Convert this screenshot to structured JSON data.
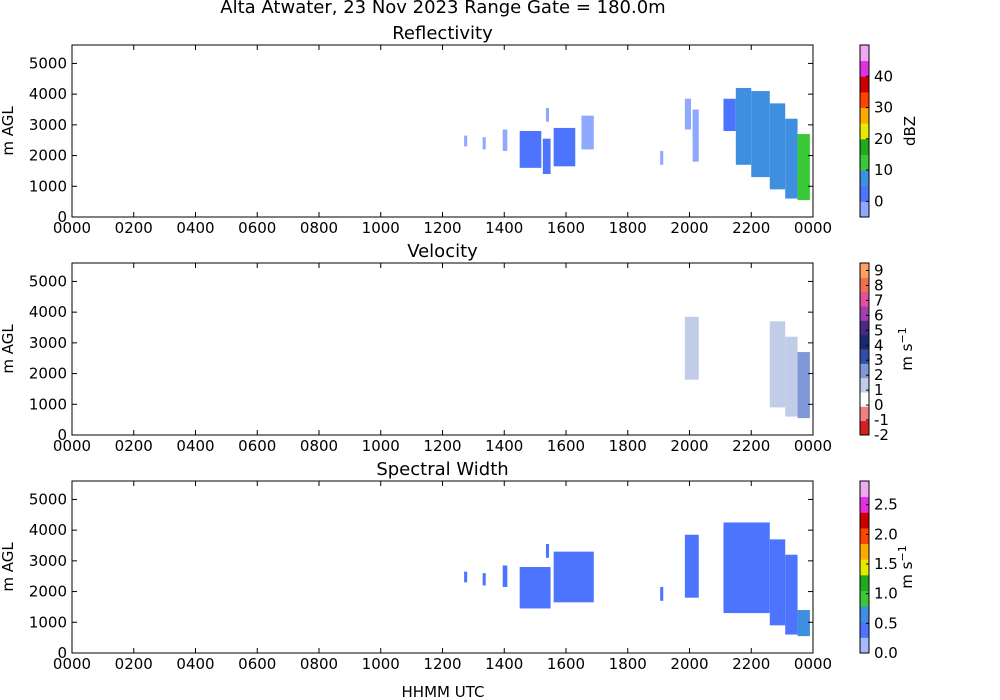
{
  "figure": {
    "suptitle": "Alta Atwater, 23 Nov 2023 Range Gate = 180.0m",
    "xlabel": "HHMM UTC"
  },
  "chart_data": [
    {
      "type": "heatmap",
      "title": "Reflectivity",
      "ylabel": "m AGL",
      "xlim": [
        0,
        24
      ],
      "ylim": [
        0,
        5600
      ],
      "xticks": [
        0,
        2,
        4,
        6,
        8,
        10,
        12,
        14,
        16,
        18,
        20,
        22,
        24
      ],
      "xticklabels": [
        "0000",
        "0200",
        "0400",
        "0600",
        "0800",
        "1000",
        "1200",
        "1400",
        "1600",
        "1800",
        "2000",
        "2200",
        "0000"
      ],
      "yticks": [
        0,
        1000,
        2000,
        3000,
        4000,
        5000
      ],
      "yticklabels": [
        "0",
        "1000",
        "2000",
        "3000",
        "4000",
        "5000"
      ],
      "colorbar": {
        "label": "dBZ",
        "range": [
          -5,
          50
        ],
        "ticks": [
          0,
          10,
          20,
          30,
          40
        ],
        "ticklabels": [
          "0",
          "10",
          "20",
          "30",
          "40"
        ],
        "colors": [
          "#8fa9ff",
          "#4d74ff",
          "#3f8fe0",
          "#38c838",
          "#1faa1f",
          "#e8e800",
          "#ffaa00",
          "#ff4400",
          "#cc0000",
          "#e030e0",
          "#f0a8f0"
        ]
      },
      "echoes": [
        {
          "t_start": 12.7,
          "t_end": 12.8,
          "z_bottom": 2300,
          "z_top": 2650,
          "value": -1
        },
        {
          "t_start": 13.3,
          "t_end": 13.4,
          "z_bottom": 2200,
          "z_top": 2600,
          "value": -1
        },
        {
          "t_start": 13.95,
          "t_end": 14.1,
          "z_bottom": 2150,
          "z_top": 2850,
          "value": -1
        },
        {
          "t_start": 14.5,
          "t_end": 15.2,
          "z_bottom": 1600,
          "z_top": 2800,
          "value": 1
        },
        {
          "t_start": 15.25,
          "t_end": 15.5,
          "z_bottom": 1400,
          "z_top": 2550,
          "value": 4
        },
        {
          "t_start": 15.35,
          "t_end": 15.45,
          "z_bottom": 3100,
          "z_top": 3550,
          "value": -1
        },
        {
          "t_start": 15.6,
          "t_end": 16.3,
          "z_bottom": 1650,
          "z_top": 2900,
          "value": 2
        },
        {
          "t_start": 16.5,
          "t_end": 16.9,
          "z_bottom": 2200,
          "z_top": 3300,
          "value": -1
        },
        {
          "t_start": 19.05,
          "t_end": 19.15,
          "z_bottom": 1700,
          "z_top": 2150,
          "value": -1
        },
        {
          "t_start": 19.85,
          "t_end": 20.05,
          "z_bottom": 2850,
          "z_top": 3850,
          "value": -1
        },
        {
          "t_start": 20.1,
          "t_end": 20.3,
          "z_bottom": 1800,
          "z_top": 3500,
          "value": -1
        },
        {
          "t_start": 21.1,
          "t_end": 21.5,
          "z_bottom": 2800,
          "z_top": 3850,
          "value": 0
        },
        {
          "t_start": 21.5,
          "t_end": 22.0,
          "z_bottom": 1700,
          "z_top": 4200,
          "value": 5
        },
        {
          "t_start": 22.0,
          "t_end": 22.6,
          "z_bottom": 1300,
          "z_top": 4100,
          "value": 6
        },
        {
          "t_start": 22.6,
          "t_end": 23.1,
          "z_bottom": 900,
          "z_top": 3700,
          "value": 8
        },
        {
          "t_start": 23.1,
          "t_end": 23.5,
          "z_bottom": 600,
          "z_top": 3200,
          "value": 9
        },
        {
          "t_start": 23.5,
          "t_end": 23.9,
          "z_bottom": 550,
          "z_top": 2700,
          "value": 12
        }
      ]
    },
    {
      "type": "heatmap",
      "title": "Velocity",
      "ylabel": "m s^-1 units",
      "ylabel_text": "m AGL",
      "xlim": [
        0,
        24
      ],
      "ylim": [
        0,
        5600
      ],
      "xticks": [
        0,
        2,
        4,
        6,
        8,
        10,
        12,
        14,
        16,
        18,
        20,
        22,
        24
      ],
      "xticklabels": [
        "0000",
        "0200",
        "0400",
        "0600",
        "0800",
        "1000",
        "1200",
        "1400",
        "1600",
        "1800",
        "2000",
        "2200",
        "0000"
      ],
      "yticks": [
        0,
        1000,
        2000,
        3000,
        4000,
        5000
      ],
      "yticklabels": [
        "0",
        "1000",
        "2000",
        "3000",
        "4000",
        "5000"
      ],
      "colorbar": {
        "label": "m s",
        "label_exp": "−1",
        "range": [
          -2,
          9.5
        ],
        "ticks": [
          -2,
          -1,
          0,
          1,
          2,
          3,
          4,
          5,
          6,
          7,
          8,
          9
        ],
        "ticklabels": [
          "-2",
          "-1",
          "0",
          "1",
          "2",
          "3",
          "4",
          "5",
          "6",
          "7",
          "8",
          "9"
        ],
        "colors": [
          "#d02020",
          "#f08080",
          "#ffffff",
          "#c0cce8",
          "#8098d8",
          "#3050a8",
          "#1a2a70",
          "#4a2a80",
          "#a040b0",
          "#e050a0",
          "#f07050",
          "#ffa060"
        ]
      },
      "echoes": [
        {
          "t_start": 12.7,
          "t_end": 12.8,
          "z_bottom": 2300,
          "z_top": 2650,
          "value": 0.3
        },
        {
          "t_start": 13.3,
          "t_end": 13.4,
          "z_bottom": 2200,
          "z_top": 2600,
          "value": 0.3
        },
        {
          "t_start": 13.95,
          "t_end": 14.1,
          "z_bottom": 2150,
          "z_top": 2850,
          "value": 0.4
        },
        {
          "t_start": 14.5,
          "t_end": 15.5,
          "z_bottom": 1450,
          "z_top": 2800,
          "value": 0.6
        },
        {
          "t_start": 15.6,
          "t_end": 16.9,
          "z_bottom": 1650,
          "z_top": 3200,
          "value": 0.8
        },
        {
          "t_start": 19.05,
          "t_end": 19.15,
          "z_bottom": 1700,
          "z_top": 2150,
          "value": 0.8
        },
        {
          "t_start": 19.85,
          "t_end": 20.3,
          "z_bottom": 1800,
          "z_top": 3850,
          "value": 0.9
        },
        {
          "t_start": 21.1,
          "t_end": 22.0,
          "z_bottom": 1700,
          "z_top": 4200,
          "value": 0.6
        },
        {
          "t_start": 22.0,
          "t_end": 22.6,
          "z_bottom": 1300,
          "z_top": 4200,
          "value": 0.8
        },
        {
          "t_start": 22.6,
          "t_end": 23.1,
          "z_bottom": 900,
          "z_top": 3700,
          "value": 1.3
        },
        {
          "t_start": 23.1,
          "t_end": 23.5,
          "z_bottom": 600,
          "z_top": 3200,
          "value": 1.8
        },
        {
          "t_start": 23.5,
          "t_end": 23.9,
          "z_bottom": 550,
          "z_top": 2700,
          "value": 2.5
        }
      ]
    },
    {
      "type": "heatmap",
      "title": "Spectral Width",
      "ylabel_text": "m AGL",
      "xlim": [
        0,
        24
      ],
      "ylim": [
        0,
        5600
      ],
      "xticks": [
        0,
        2,
        4,
        6,
        8,
        10,
        12,
        14,
        16,
        18,
        20,
        22,
        24
      ],
      "xticklabels": [
        "0000",
        "0200",
        "0400",
        "0600",
        "0800",
        "1000",
        "1200",
        "1400",
        "1600",
        "1800",
        "2000",
        "2200",
        "0000"
      ],
      "yticks": [
        0,
        1000,
        2000,
        3000,
        4000,
        5000
      ],
      "yticklabels": [
        "0",
        "1000",
        "2000",
        "3000",
        "4000",
        "5000"
      ],
      "colorbar": {
        "label": "m s",
        "label_exp": "−1",
        "range": [
          0,
          2.9
        ],
        "ticks": [
          0,
          0.5,
          1.0,
          1.5,
          2.0,
          2.5
        ],
        "ticklabels": [
          "0.0",
          "0.5",
          "1.0",
          "1.5",
          "2.0",
          "2.5"
        ],
        "colors": [
          "#a8b8ff",
          "#4d74ff",
          "#3f8fe0",
          "#38c838",
          "#1faa1f",
          "#e8e800",
          "#ffaa00",
          "#ff4400",
          "#cc0000",
          "#e030e0",
          "#f0a8f0"
        ]
      },
      "echoes": [
        {
          "t_start": 12.7,
          "t_end": 12.8,
          "z_bottom": 2300,
          "z_top": 2650,
          "value": 0.3
        },
        {
          "t_start": 13.3,
          "t_end": 13.4,
          "z_bottom": 2200,
          "z_top": 2600,
          "value": 0.3
        },
        {
          "t_start": 13.95,
          "t_end": 14.1,
          "z_bottom": 2150,
          "z_top": 2850,
          "value": 0.3
        },
        {
          "t_start": 14.5,
          "t_end": 15.5,
          "z_bottom": 1450,
          "z_top": 2800,
          "value": 0.3
        },
        {
          "t_start": 15.35,
          "t_end": 15.45,
          "z_bottom": 3100,
          "z_top": 3550,
          "value": 0.3
        },
        {
          "t_start": 15.6,
          "t_end": 16.9,
          "z_bottom": 1650,
          "z_top": 3300,
          "value": 0.3
        },
        {
          "t_start": 19.05,
          "t_end": 19.15,
          "z_bottom": 1700,
          "z_top": 2150,
          "value": 0.3
        },
        {
          "t_start": 19.85,
          "t_end": 20.3,
          "z_bottom": 1800,
          "z_top": 3850,
          "value": 0.3
        },
        {
          "t_start": 21.1,
          "t_end": 22.6,
          "z_bottom": 1300,
          "z_top": 4250,
          "value": 0.35
        },
        {
          "t_start": 22.6,
          "t_end": 23.1,
          "z_bottom": 900,
          "z_top": 3700,
          "value": 0.4
        },
        {
          "t_start": 23.1,
          "t_end": 23.5,
          "z_bottom": 600,
          "z_top": 3200,
          "value": 0.45
        },
        {
          "t_start": 23.5,
          "t_end": 23.9,
          "z_bottom": 550,
          "z_top": 1400,
          "value": 0.75
        }
      ]
    }
  ]
}
